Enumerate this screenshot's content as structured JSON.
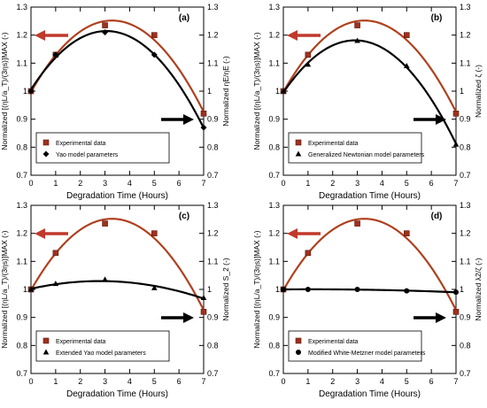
{
  "chart_data": [
    {
      "type": "line",
      "panel_label": "(a)",
      "xlabel": "Degradation Time (Hours)",
      "ylabel": "Normalized [(ηL/a_T)/(3ηs)]MAX (-)",
      "ylabel_right": "Normalized ηE/ηE (-)",
      "xlim": [
        0,
        7
      ],
      "ylim": [
        0.7,
        1.3
      ],
      "x_ticks": [
        "0",
        "1",
        "2",
        "3",
        "4",
        "5",
        "6",
        "7"
      ],
      "y_ticks": [
        "0.7",
        "0.8",
        "0.9",
        "1",
        "1.1",
        "1.2",
        "1.3"
      ],
      "series": [
        {
          "name": "Experimental data",
          "marker": "square",
          "color": "#a0301c",
          "x": [
            0,
            1,
            3,
            5,
            7
          ],
          "y": [
            1.0,
            1.13,
            1.235,
            1.2,
            0.92
          ]
        },
        {
          "name": "Yao model parameters",
          "marker": "diamond",
          "color": "#000000",
          "x": [
            0,
            1,
            3,
            5,
            7
          ],
          "y": [
            1.0,
            1.13,
            1.21,
            1.13,
            0.87
          ]
        }
      ],
      "legend_location": "lower-left",
      "annotations": [
        {
          "type": "arrow",
          "direction": "left",
          "color": "#c0392b"
        },
        {
          "type": "arrow",
          "direction": "right",
          "color": "#000000"
        }
      ]
    },
    {
      "type": "line",
      "panel_label": "(b)",
      "xlabel": "Degradation Time (Hours)",
      "ylabel": "Normalized [(ηL/a_T)/(3ηs)]MAX (-)",
      "ylabel_right": "Normalized ζ (-)",
      "xlim": [
        0,
        7
      ],
      "ylim": [
        0.7,
        1.3
      ],
      "x_ticks": [
        "0",
        "1",
        "2",
        "3",
        "4",
        "5",
        "6",
        "7"
      ],
      "y_ticks": [
        "0.7",
        "0.8",
        "0.9",
        "1",
        "1.1",
        "1.2",
        "1.3"
      ],
      "series": [
        {
          "name": "Experimental data",
          "marker": "square",
          "color": "#a0301c",
          "x": [
            0,
            1,
            3,
            5,
            7
          ],
          "y": [
            1.0,
            1.13,
            1.235,
            1.2,
            0.92
          ]
        },
        {
          "name": "Generalized Newtonian model parameters",
          "marker": "triangle",
          "color": "#000000",
          "x": [
            0,
            1,
            3,
            5,
            7
          ],
          "y": [
            1.0,
            1.095,
            1.18,
            1.09,
            0.81
          ]
        }
      ],
      "legend_location": "lower-left",
      "annotations": [
        {
          "type": "arrow",
          "direction": "left",
          "color": "#c0392b"
        },
        {
          "type": "arrow",
          "direction": "right",
          "color": "#000000"
        }
      ]
    },
    {
      "type": "line",
      "panel_label": "(c)",
      "xlabel": "Degradation Time (Hours)",
      "ylabel": "Normalized [(ηL/a_T)/(3ηs)]MAX (-)",
      "ylabel_right": "Normalized S_2 (-)",
      "xlim": [
        0,
        7
      ],
      "ylim": [
        0.7,
        1.3
      ],
      "x_ticks": [
        "0",
        "1",
        "2",
        "3",
        "4",
        "5",
        "6",
        "7"
      ],
      "y_ticks": [
        "0.7",
        "0.8",
        "0.9",
        "1",
        "1.1",
        "1.2",
        "1.3"
      ],
      "series": [
        {
          "name": "Experimental data",
          "marker": "square",
          "color": "#a0301c",
          "x": [
            0,
            1,
            3,
            5,
            7
          ],
          "y": [
            1.0,
            1.13,
            1.235,
            1.2,
            0.92
          ]
        },
        {
          "name": "Extended Yao model parameters",
          "marker": "triangle",
          "color": "#000000",
          "x": [
            0,
            1,
            3,
            5,
            7
          ],
          "y": [
            1.0,
            1.02,
            1.035,
            1.005,
            0.97
          ]
        }
      ],
      "legend_location": "lower-left",
      "annotations": [
        {
          "type": "arrow",
          "direction": "left",
          "color": "#c0392b"
        },
        {
          "type": "arrow",
          "direction": "right",
          "color": "#000000"
        }
      ]
    },
    {
      "type": "line",
      "panel_label": "(d)",
      "xlabel": "Degradation Time (Hours)",
      "ylabel": "Normalized [(ηL/a_T)/(3ηs)]MAX (-)",
      "ylabel_right": "Normalized λ2/ζ (-)",
      "xlim": [
        0,
        7
      ],
      "ylim": [
        0.7,
        1.3
      ],
      "x_ticks": [
        "0",
        "1",
        "2",
        "3",
        "4",
        "5",
        "6",
        "7"
      ],
      "y_ticks": [
        "0.7",
        "0.8",
        "0.9",
        "1",
        "1.1",
        "1.2",
        "1.3"
      ],
      "series": [
        {
          "name": "Experimental data",
          "marker": "square",
          "color": "#a0301c",
          "x": [
            0,
            1,
            3,
            5,
            7
          ],
          "y": [
            1.0,
            1.13,
            1.235,
            1.2,
            0.92
          ]
        },
        {
          "name": "Modified White-Metzner model parameters",
          "marker": "circle",
          "color": "#000000",
          "x": [
            0,
            1,
            3,
            5,
            7
          ],
          "y": [
            1.0,
            1.0,
            1.0,
            0.995,
            0.99
          ]
        }
      ],
      "legend_location": "lower-left",
      "annotations": [
        {
          "type": "arrow",
          "direction": "left",
          "color": "#c0392b"
        },
        {
          "type": "arrow",
          "direction": "right",
          "color": "#000000"
        }
      ]
    }
  ]
}
